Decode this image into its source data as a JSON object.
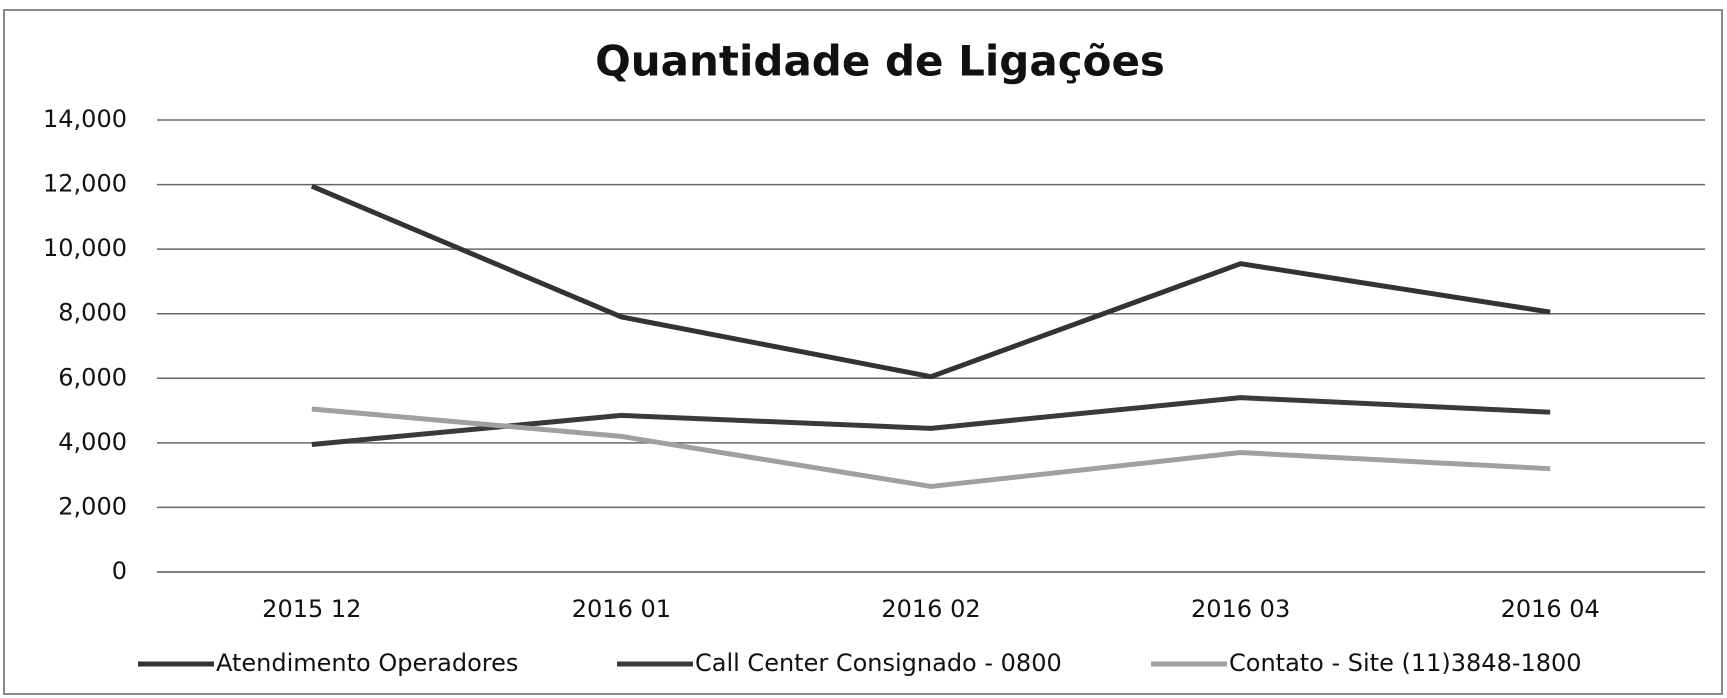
{
  "chart_data": {
    "type": "line",
    "title": "Quantidade de Ligações",
    "categories": [
      "2015 12",
      "2016 01",
      "2016 02",
      "2016 03",
      "2016 04"
    ],
    "series": [
      {
        "name": "Atendimento Operadores",
        "color": "#333333",
        "values": [
          11950,
          7900,
          6050,
          9550,
          8050
        ]
      },
      {
        "name": "Call Center Consignado - 0800",
        "color": "#3a3a3a",
        "values": [
          3950,
          4850,
          4450,
          5400,
          4950
        ]
      },
      {
        "name": "Contato - Site (11)3848-1800",
        "color": "#a0a0a0",
        "values": [
          5050,
          4200,
          2650,
          3700,
          3200
        ]
      }
    ],
    "ylim": [
      0,
      14000
    ],
    "yticks": [
      0,
      {
        "value": 2000,
        "label": "2,000"
      },
      {
        "value": 4000,
        "label": "4,000"
      },
      {
        "value": 6000,
        "label": "6,000"
      },
      {
        "value": 8000,
        "label": "8,000"
      },
      {
        "value": 10000,
        "label": "10,000"
      },
      {
        "value": 12000,
        "label": "12,000"
      },
      {
        "value": 14000,
        "label": "14,000"
      }
    ],
    "grid": true,
    "legend": "bottom"
  }
}
